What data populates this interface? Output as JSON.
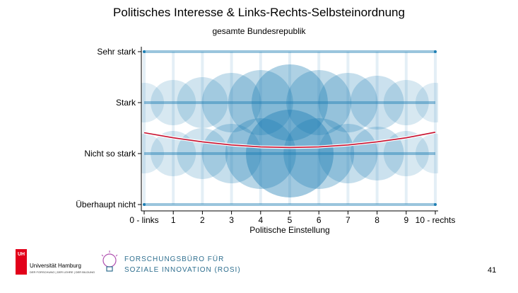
{
  "slide": {
    "title": "Politisches Interesse & Links-Rechts-Selbsteinordnung",
    "subtitle": "gesamte Bundesrepublik",
    "page_number": "41"
  },
  "footer": {
    "uhh_mark": "UH",
    "uhh_name": "Universität Hamburg",
    "uhh_tagline": "DER FORSCHUNG | DER LEHRE | DER BILDUNG",
    "rosi_line1": "FORSCHUNGSBÜRO FÜR",
    "rosi_line2": "SOZIALE INNOVATION (ROSI)"
  },
  "chart_data": {
    "type": "scatter",
    "title": "Politisches Interesse & Links-Rechts-Selbsteinordnung",
    "subtitle": "gesamte Bundesrepublik",
    "xlabel": "Politische Einstellung",
    "ylabel": "",
    "x_ticks": [
      0,
      1,
      2,
      3,
      4,
      5,
      6,
      7,
      8,
      9,
      10
    ],
    "x_tick_labels": [
      "0 - links",
      "1",
      "2",
      "3",
      "4",
      "5",
      "6",
      "7",
      "8",
      "9",
      "10 - rechts"
    ],
    "y_ticks": [
      1,
      2,
      3,
      4
    ],
    "y_tick_labels": [
      "Überhaupt nicht",
      "Nicht so stark",
      "Stark",
      "Sehr stark"
    ],
    "xlim": [
      0,
      10
    ],
    "ylim": [
      1,
      4
    ],
    "grid": false,
    "point_color": "#1f7fb4",
    "fit_color": "#c8102e",
    "jitter_clouds": [
      {
        "x": 0,
        "y": 3,
        "size": 0.15
      },
      {
        "x": 1,
        "y": 3,
        "size": 0.25
      },
      {
        "x": 2,
        "y": 3,
        "size": 0.35
      },
      {
        "x": 3,
        "y": 3,
        "size": 0.5
      },
      {
        "x": 4,
        "y": 3,
        "size": 0.6
      },
      {
        "x": 5,
        "y": 3,
        "size": 0.8
      },
      {
        "x": 6,
        "y": 3,
        "size": 0.6
      },
      {
        "x": 7,
        "y": 3,
        "size": 0.5
      },
      {
        "x": 8,
        "y": 3,
        "size": 0.4
      },
      {
        "x": 9,
        "y": 3,
        "size": 0.25
      },
      {
        "x": 10,
        "y": 3,
        "size": 0.15
      },
      {
        "x": 0,
        "y": 2,
        "size": 0.15
      },
      {
        "x": 1,
        "y": 2,
        "size": 0.25
      },
      {
        "x": 2,
        "y": 2,
        "size": 0.35
      },
      {
        "x": 3,
        "y": 2,
        "size": 0.5
      },
      {
        "x": 4,
        "y": 2,
        "size": 0.7
      },
      {
        "x": 5,
        "y": 2,
        "size": 1.0
      },
      {
        "x": 6,
        "y": 2,
        "size": 0.7
      },
      {
        "x": 7,
        "y": 2,
        "size": 0.5
      },
      {
        "x": 8,
        "y": 2,
        "size": 0.4
      },
      {
        "x": 9,
        "y": 2,
        "size": 0.25
      },
      {
        "x": 10,
        "y": 2,
        "size": 0.15
      }
    ],
    "fit_line": {
      "x": [
        0,
        1,
        2,
        3,
        4,
        5,
        6,
        7,
        8,
        9,
        10
      ],
      "y": [
        2.41,
        2.31,
        2.23,
        2.17,
        2.13,
        2.12,
        2.13,
        2.17,
        2.23,
        2.31,
        2.42
      ]
    }
  }
}
